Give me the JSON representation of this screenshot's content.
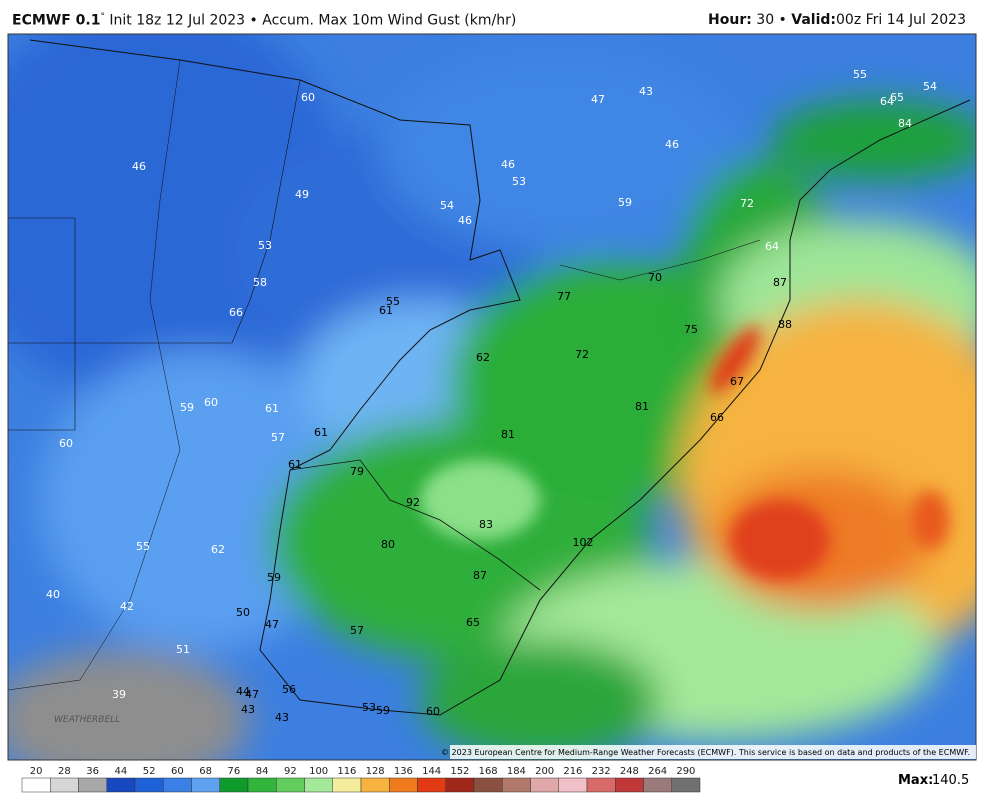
{
  "header": {
    "model": "ECMWF 0.1",
    "degree": "°",
    "description": "Init 18z 12 Jul 2023 • Accum. Max 10m Wind Gust (km/hr)",
    "hour_label": "Hour:",
    "hour_value": "30 •",
    "valid_label": "Valid:",
    "valid_value": "00z Fri 14 Jul 2023"
  },
  "map": {
    "labels": [
      "55",
      "54",
      "64",
      "65",
      "84",
      "47",
      "43",
      "46",
      "60",
      "46",
      "46",
      "53",
      "49",
      "54",
      "46",
      "59",
      "72",
      "53",
      "64",
      "70",
      "58",
      "87",
      "77",
      "55",
      "61",
      "66",
      "75",
      "88",
      "62",
      "72",
      "67",
      "59",
      "60",
      "61",
      "81",
      "66",
      "57",
      "61",
      "81",
      "60",
      "61",
      "79",
      "92",
      "83",
      "102",
      "55",
      "62",
      "80",
      "87",
      "59",
      "40",
      "42",
      "50",
      "47",
      "65",
      "57",
      "51",
      "56",
      "44",
      "47",
      "39",
      "43",
      "43",
      "53",
      "59",
      "60"
    ],
    "logo": "WEATHERBELL",
    "copyright": "© 2023 European Centre for Medium-Range Weather Forecasts (ECMWF). This service is based on data and products of the ECMWF."
  },
  "colorbar": {
    "ticks": [
      20,
      28,
      36,
      44,
      52,
      60,
      68,
      76,
      84,
      92,
      100,
      116,
      128,
      136,
      144,
      152,
      168,
      184,
      200,
      216,
      232,
      248,
      264,
      290
    ],
    "colors": [
      "#ffffff",
      "#d6d6d6",
      "#a8a8a8",
      "#1848c0",
      "#1f62d8",
      "#3a80e6",
      "#5ea2ef",
      "#0f9a2c",
      "#32b43c",
      "#62cc5c",
      "#a4e89a",
      "#f4ee9c",
      "#f6b340",
      "#f07a1e",
      "#e23a12",
      "#a0281a",
      "#8a5040",
      "#b07a6a",
      "#e0a8a8",
      "#f0c0c8",
      "#d86a6a",
      "#c03838",
      "#9a7a7a",
      "#707070"
    ],
    "max_label": "Max:",
    "max_value": "140.5"
  }
}
